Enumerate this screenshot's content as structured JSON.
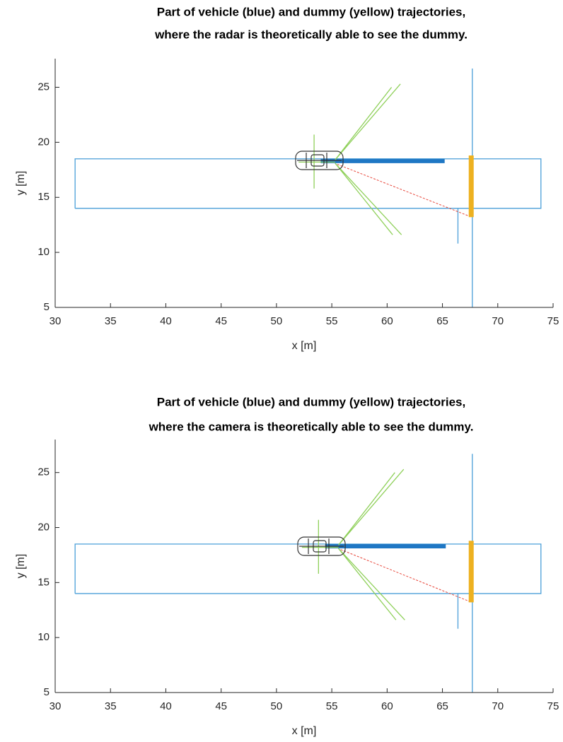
{
  "chart_data": [
    {
      "type": "line",
      "title": [
        "Part of vehicle (blue) and dummy (yellow) trajectories,",
        "where the radar is theoretically able to see the dummy."
      ],
      "xlabel": "x [m]",
      "ylabel": "y [m]",
      "xlim": [
        30,
        75
      ],
      "ylim": [
        5,
        27.6
      ],
      "xticks": [
        30,
        35,
        40,
        45,
        50,
        55,
        60,
        65,
        70,
        75
      ],
      "yticks": [
        5,
        10,
        15,
        20,
        25
      ],
      "series": [
        {
          "color": "#4a9fd8",
          "width": 1.3,
          "x": [
            31.8,
            73.9,
            73.9,
            31.8,
            31.8
          ],
          "values": [
            14,
            14,
            18.5,
            18.5,
            14
          ]
        },
        {
          "color": "#4a9fd8",
          "width": 1.3,
          "x": [
            67.7,
            67.7
          ],
          "values": [
            5,
            26.7
          ]
        },
        {
          "color": "#4a9fd8",
          "width": 1.3,
          "x": [
            66.4,
            66.4
          ],
          "values": [
            10.8,
            14
          ]
        },
        {
          "color": "#1f77c4",
          "width": 6,
          "x": [
            54,
            65.2
          ],
          "values": [
            18.3,
            18.3
          ]
        },
        {
          "color": "#edb120",
          "width": 7,
          "x": [
            67.6,
            67.6
          ],
          "values": [
            13.2,
            18.8
          ]
        },
        {
          "color": "#8fd05a",
          "width": 1.3,
          "x": [
            60.4,
            55.3,
            61.2
          ],
          "values": [
            25,
            18.4,
            25.3
          ]
        },
        {
          "color": "#8fd05a",
          "width": 1.3,
          "x": [
            60.5,
            55.3,
            61.3
          ],
          "values": [
            11.6,
            18.1,
            11.6
          ]
        },
        {
          "color": "#8fd05a",
          "width": 1.3,
          "x": [
            53.4,
            53.4
          ],
          "values": [
            15.8,
            20.7
          ]
        },
        {
          "color": "#8fd05a",
          "width": 1.3,
          "x": [
            52,
            55.3
          ],
          "values": [
            18.2,
            18.2
          ]
        },
        {
          "color": "#e8483c",
          "width": 1,
          "dashed": true,
          "x": [
            55.5,
            67.4
          ],
          "values": [
            18,
            13.3
          ]
        }
      ]
    },
    {
      "type": "line",
      "title": [
        "Part of vehicle (blue) and dummy (yellow) trajectories,",
        "where the camera is theoretically able to see the dummy."
      ],
      "xlabel": "x [m]",
      "ylabel": "y [m]",
      "xlim": [
        30,
        75
      ],
      "ylim": [
        5,
        28
      ],
      "xticks": [
        30,
        35,
        40,
        45,
        50,
        55,
        60,
        65,
        70,
        75
      ],
      "yticks": [
        5,
        10,
        15,
        20,
        25
      ],
      "series": [
        {
          "color": "#4a9fd8",
          "width": 1.3,
          "x": [
            31.8,
            73.9,
            73.9,
            31.8,
            31.8
          ],
          "values": [
            14,
            14,
            18.5,
            18.5,
            14
          ]
        },
        {
          "color": "#4a9fd8",
          "width": 1.3,
          "x": [
            67.7,
            67.7
          ],
          "values": [
            5,
            26.7
          ]
        },
        {
          "color": "#4a9fd8",
          "width": 1.3,
          "x": [
            66.4,
            66.4
          ],
          "values": [
            10.8,
            14
          ]
        },
        {
          "color": "#1f77c4",
          "width": 6,
          "x": [
            54.4,
            65.3
          ],
          "values": [
            18.3,
            18.3
          ]
        },
        {
          "color": "#edb120",
          "width": 7,
          "x": [
            67.6,
            67.6
          ],
          "values": [
            13.2,
            18.8
          ]
        },
        {
          "color": "#8fd05a",
          "width": 1.3,
          "x": [
            60.7,
            55.6,
            61.5
          ],
          "values": [
            25,
            18.4,
            25.3
          ]
        },
        {
          "color": "#8fd05a",
          "width": 1.3,
          "x": [
            60.8,
            55.6,
            61.6
          ],
          "values": [
            11.6,
            18.1,
            11.6
          ]
        },
        {
          "color": "#8fd05a",
          "width": 1.3,
          "x": [
            53.8,
            53.8
          ],
          "values": [
            15.8,
            20.7
          ]
        },
        {
          "color": "#8fd05a",
          "width": 1.3,
          "x": [
            52.3,
            55.6
          ],
          "values": [
            18.2,
            18.2
          ]
        },
        {
          "color": "#e8483c",
          "width": 1,
          "dashed": true,
          "x": [
            55.8,
            67.4
          ],
          "values": [
            18,
            13.3
          ]
        }
      ]
    }
  ]
}
